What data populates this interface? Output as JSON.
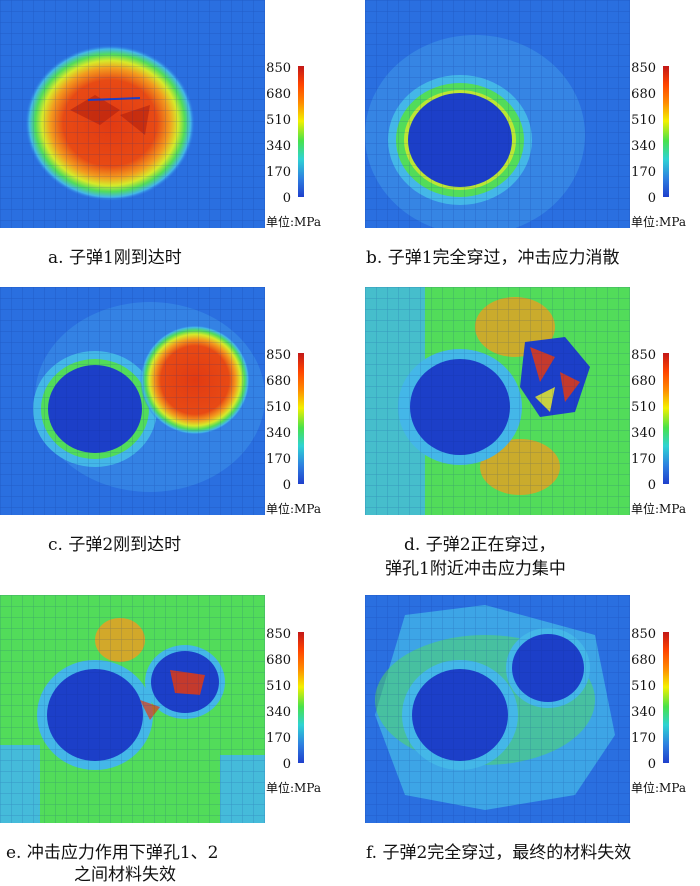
{
  "colorbar": {
    "ticks": [
      "850",
      "680",
      "510",
      "340",
      "170",
      "0"
    ],
    "unit": "单位:MPa"
  },
  "panels": [
    {
      "id": "a",
      "caption_lines": [
        "a. 子弹1刚到达时"
      ]
    },
    {
      "id": "b",
      "caption_lines": [
        "b. 子弹1完全穿过，冲击应力消散"
      ]
    },
    {
      "id": "c",
      "caption_lines": [
        "c. 子弹2刚到达时"
      ]
    },
    {
      "id": "d",
      "caption_lines": [
        "d. 子弹2正在穿过，",
        "弹孔1附近冲击应力集中"
      ]
    },
    {
      "id": "e",
      "caption_lines": [
        "e. 冲击应力作用下弹孔1、2",
        "之间材料失效"
      ]
    },
    {
      "id": "f",
      "caption_lines": [
        "f. 子弹2完全穿过，最终的材料失效"
      ]
    }
  ],
  "colors": {
    "background_blue": "#2a6fe0",
    "hole_blue": "#1c3fc8",
    "light_blue": "#44b7e8",
    "green": "#52dc5a",
    "yellow": "#e7ea2a",
    "orange": "#f3901e",
    "red": "#e23a12"
  }
}
